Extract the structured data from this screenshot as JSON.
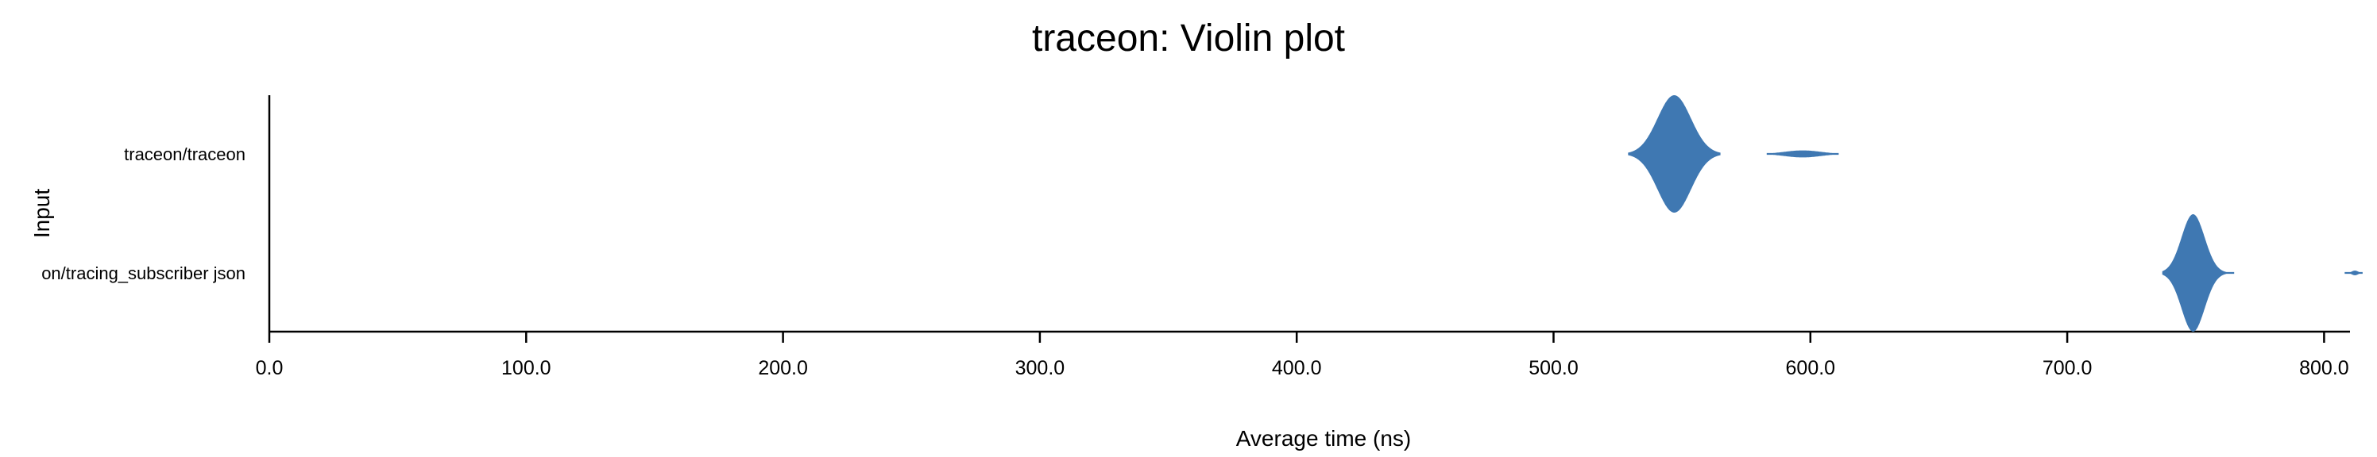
{
  "chart_data": {
    "type": "violin",
    "title": "traceon: Violin plot",
    "xlabel": "Average time (ns)",
    "ylabel": "Input",
    "xlim": [
      0,
      815
    ],
    "xticks": [
      0,
      100,
      200,
      300,
      400,
      500,
      600,
      700,
      800
    ],
    "xtick_labels": [
      "0.0",
      "100.0",
      "200.0",
      "300.0",
      "400.0",
      "500.0",
      "600.0",
      "700.0",
      "800.0"
    ],
    "grid": false,
    "color": "#3f78b2",
    "series": [
      {
        "name": "traceon/traceon",
        "label": "traceon/traceon",
        "peaks": [
          {
            "center": 547,
            "spread": 6.5,
            "height": 1.0,
            "min": 529,
            "max": 565
          },
          {
            "center": 597,
            "spread": 7.0,
            "height": 0.06,
            "min": 583,
            "max": 611
          }
        ]
      },
      {
        "name": "on/tracing_subscriber json",
        "label": "on/tracing_subscriber json",
        "peaks": [
          {
            "center": 749,
            "spread": 4.5,
            "height": 1.0,
            "min": 737,
            "max": 765
          },
          {
            "center": 812,
            "spread": 1.2,
            "height": 0.04,
            "min": 808,
            "max": 815
          }
        ]
      }
    ]
  }
}
